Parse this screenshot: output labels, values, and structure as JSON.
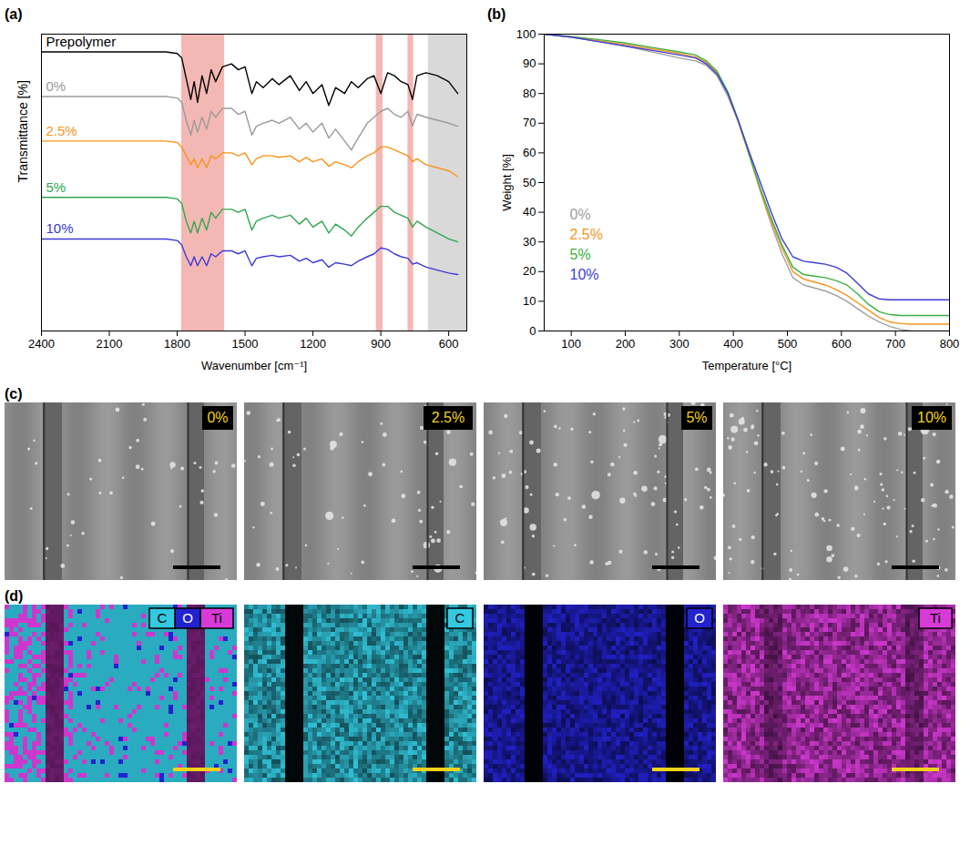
{
  "chart_data": [
    {
      "panel": "(a)",
      "type": "line",
      "x_label": "Wavenumber [cm⁻¹]",
      "y_label": "Transmittance [%]",
      "xlim": [
        2400,
        520
      ],
      "xticks": [
        2400,
        2100,
        1800,
        1500,
        1200,
        900,
        600
      ],
      "ylim": [
        0,
        100
      ],
      "tick_labels": "x",
      "highlights": [
        {
          "from": 1780,
          "to": 1590,
          "color": "#f4b8b4"
        },
        {
          "from": 920,
          "to": 890,
          "color": "#f4b8b4"
        },
        {
          "from": 780,
          "to": 755,
          "color": "#f4b8b4"
        },
        {
          "from": 690,
          "to": 520,
          "color": "#d9d9d9"
        }
      ],
      "x": [
        2400,
        2200,
        2000,
        1850,
        1800,
        1780,
        1760,
        1740,
        1725,
        1710,
        1690,
        1670,
        1650,
        1630,
        1600,
        1560,
        1530,
        1500,
        1470,
        1450,
        1420,
        1380,
        1350,
        1300,
        1260,
        1230,
        1200,
        1160,
        1130,
        1100,
        1060,
        1030,
        1000,
        960,
        930,
        900,
        870,
        840,
        810,
        780,
        760,
        740,
        700,
        650,
        600,
        560
      ],
      "series": [
        {
          "name": "Prepolymer",
          "color": "#000000",
          "values": [
            94,
            94,
            94,
            94,
            93.5,
            92,
            85,
            78,
            84,
            77,
            86,
            80,
            88,
            84,
            89,
            90,
            88,
            89,
            80,
            84,
            82,
            85,
            83,
            86,
            81,
            84,
            80,
            83,
            76,
            82,
            80,
            84,
            82,
            85,
            86,
            80,
            87,
            86,
            84,
            83,
            78,
            86,
            87,
            86,
            84,
            80
          ]
        },
        {
          "name": "0%",
          "color": "#9a9a9a",
          "values": [
            79,
            79,
            79,
            79,
            78.5,
            77,
            71,
            66,
            71,
            67,
            72,
            68,
            74,
            72,
            75,
            75,
            73,
            74,
            66,
            69,
            70,
            71,
            70,
            72,
            68,
            70,
            67,
            70,
            65,
            68,
            64,
            61,
            65,
            70,
            72,
            74,
            75,
            73,
            72,
            74,
            69,
            73,
            72,
            71,
            70,
            69
          ]
        },
        {
          "name": "2.5%",
          "color": "#f7941d",
          "values": [
            64,
            64,
            64,
            64,
            63.5,
            62,
            59,
            56,
            58,
            55,
            58,
            55,
            59,
            58,
            60,
            60,
            59,
            60,
            56,
            58,
            59,
            59,
            58.5,
            59,
            57,
            58.5,
            57,
            58,
            55.5,
            57,
            56,
            55,
            57,
            59,
            60,
            62,
            62,
            61,
            60,
            59,
            57,
            58,
            56,
            55,
            54,
            52
          ]
        },
        {
          "name": "5%",
          "color": "#2fa84f",
          "values": [
            45,
            45,
            45,
            45,
            44.5,
            43,
            37,
            33,
            37,
            33,
            38,
            34,
            40,
            38,
            41,
            41,
            40,
            41,
            34,
            37,
            38,
            39,
            38,
            39,
            36,
            38,
            35,
            37,
            33,
            36,
            34,
            32,
            35,
            38,
            40,
            42,
            42,
            40,
            39,
            38,
            35,
            37,
            35,
            33,
            31,
            30
          ]
        },
        {
          "name": "10%",
          "color": "#3b3bd6",
          "values": [
            31,
            31,
            31,
            31,
            30.5,
            29,
            25,
            22,
            25,
            22,
            25,
            22,
            26,
            25,
            27,
            27,
            26,
            27,
            22,
            24.5,
            25,
            25.5,
            25,
            25.5,
            23.5,
            24.5,
            23,
            24,
            21.5,
            23,
            22.5,
            22,
            23.5,
            25,
            26,
            28,
            27.5,
            26,
            25,
            24.5,
            22.5,
            23,
            21.5,
            20.5,
            19.5,
            19
          ]
        }
      ]
    },
    {
      "panel": "(b)",
      "type": "line",
      "x_label": "Temperature [°C]",
      "y_label": "Weight [%]",
      "xlim": [
        50,
        800
      ],
      "xticks": [
        100,
        200,
        300,
        400,
        500,
        600,
        700,
        800
      ],
      "ylim": [
        0,
        100
      ],
      "yticks": [
        0,
        10,
        20,
        30,
        40,
        50,
        60,
        70,
        80,
        90,
        100
      ],
      "legend": "left",
      "x": [
        50,
        100,
        150,
        200,
        250,
        300,
        330,
        350,
        370,
        390,
        410,
        430,
        450,
        470,
        490,
        510,
        530,
        550,
        570,
        590,
        610,
        630,
        650,
        670,
        690,
        710,
        730,
        750,
        800
      ],
      "series": [
        {
          "name": "0%",
          "color": "#a0a0a0",
          "values": [
            100,
            99,
            97.5,
            96,
            94,
            92,
            91,
            89.5,
            86,
            79,
            70,
            59,
            47,
            36,
            26,
            18,
            15.5,
            14.5,
            13.5,
            12,
            10,
            7.5,
            5,
            3,
            1.5,
            0.5,
            0,
            0,
            0
          ]
        },
        {
          "name": "2.5%",
          "color": "#f7941d",
          "values": [
            100,
            99,
            97.8,
            96.5,
            95,
            93.5,
            92.3,
            90.5,
            87,
            80,
            70,
            59,
            47.5,
            37,
            28,
            20,
            17.5,
            16.5,
            15.5,
            14,
            12,
            9.5,
            7,
            4.5,
            3,
            2.5,
            2.3,
            2.3,
            2.3
          ]
        },
        {
          "name": "5%",
          "color": "#3cb043",
          "values": [
            100,
            99.2,
            98.2,
            97,
            95.5,
            94,
            93,
            91,
            87.5,
            80.5,
            70.5,
            59,
            48,
            38,
            29,
            21.5,
            19,
            18.5,
            18,
            17,
            15.5,
            12.5,
            9,
            6.5,
            5.5,
            5.2,
            5.2,
            5.2,
            5.2
          ]
        },
        {
          "name": "10%",
          "color": "#3d3dd6",
          "values": [
            100,
            99,
            97.5,
            96,
            94.5,
            93,
            92,
            90,
            86.5,
            80,
            70.5,
            60,
            50,
            40,
            31,
            25,
            23.5,
            23,
            22.5,
            21.5,
            19.5,
            16,
            12.5,
            10.8,
            10.5,
            10.5,
            10.5,
            10.5,
            10.5
          ]
        }
      ]
    }
  ],
  "sem_images": {
    "panel": "(c)",
    "labels": [
      "0%",
      "2.5%",
      "5%",
      "10%"
    ]
  },
  "eds_maps": {
    "panel": "(d)",
    "maps": [
      {
        "elements": [
          {
            "name": "C",
            "color": "#33c9e0"
          },
          {
            "name": "O",
            "color": "#2222d0"
          },
          {
            "name": "Ti",
            "color": "#d83ad8"
          }
        ]
      },
      {
        "elements": [
          {
            "name": "C",
            "color": "#33c9e0"
          }
        ]
      },
      {
        "elements": [
          {
            "name": "O",
            "color": "#2222d0"
          }
        ]
      },
      {
        "elements": [
          {
            "name": "Ti",
            "color": "#d83ad8"
          }
        ]
      }
    ]
  }
}
